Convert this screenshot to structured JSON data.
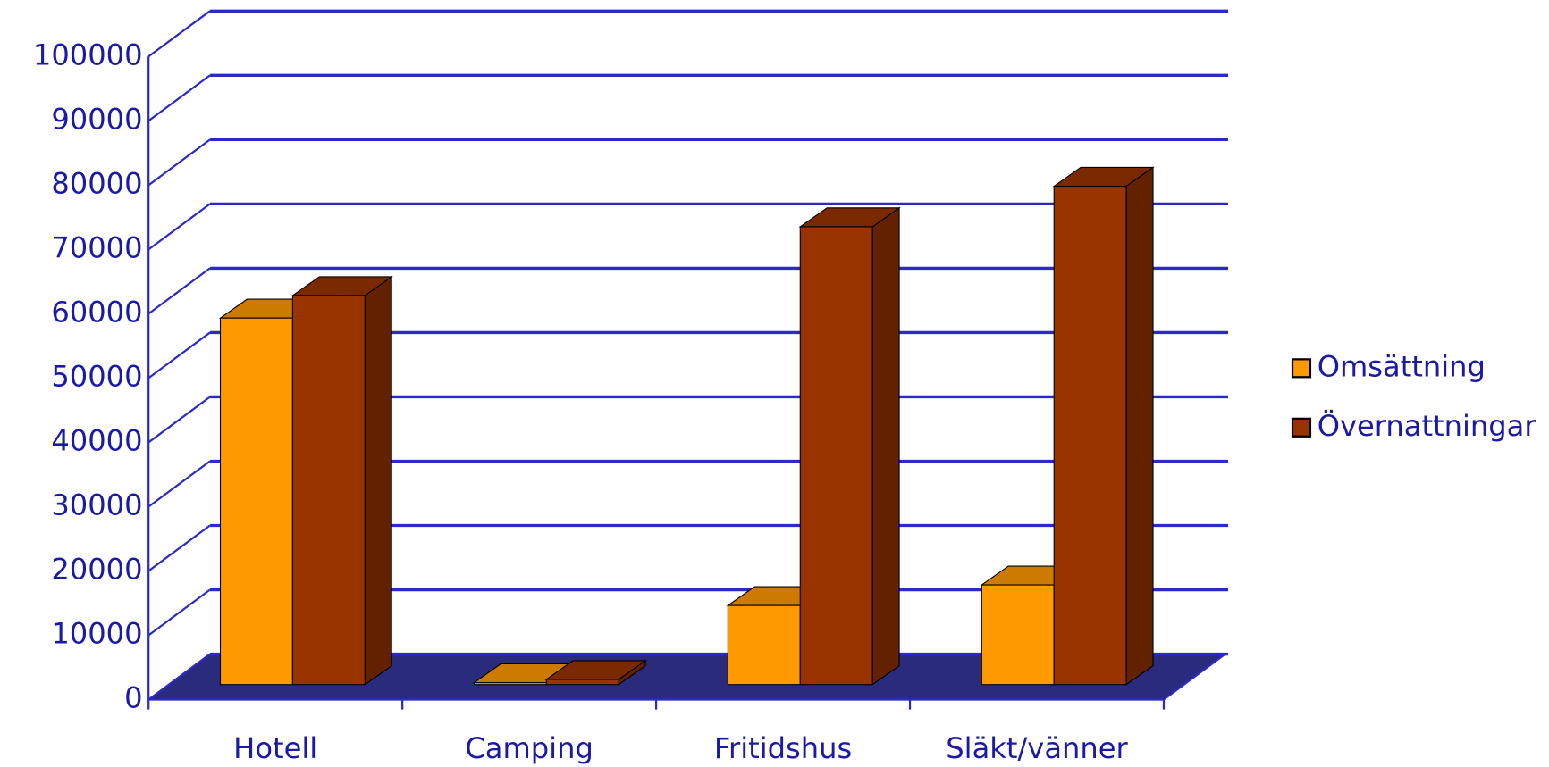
{
  "chart_data": {
    "type": "bar3d",
    "categories": [
      "Hotell",
      "Camping",
      "Fritidshus",
      "Släkt/vänner"
    ],
    "series": [
      {
        "name": "Omsättning",
        "color": "#ff9900",
        "values": [
          57000,
          300,
          12300,
          15500
        ]
      },
      {
        "name": "Övernattningar",
        "color": "#993300",
        "values": [
          60500,
          800,
          71200,
          77500
        ]
      }
    ],
    "ylim": [
      0,
      100000
    ],
    "yticks": [
      0,
      10000,
      20000,
      30000,
      40000,
      50000,
      60000,
      70000,
      80000,
      90000,
      100000
    ],
    "grid": true,
    "legend": "right"
  }
}
